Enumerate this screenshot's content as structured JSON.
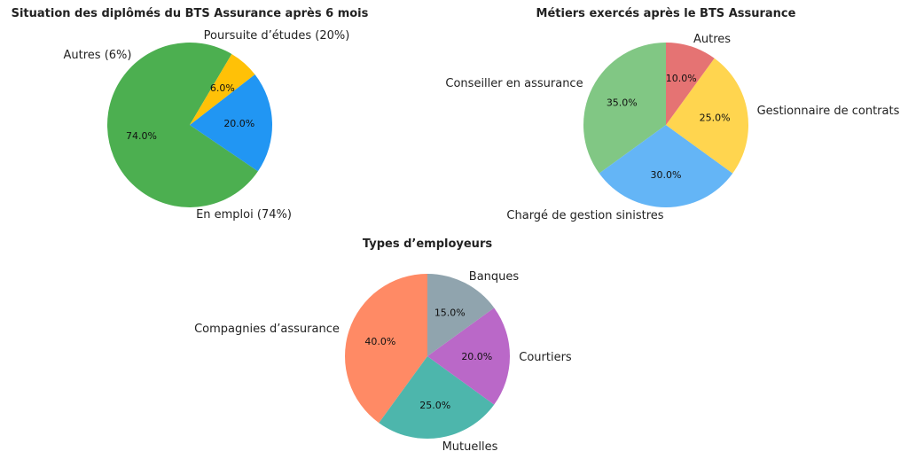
{
  "chart_data": [
    {
      "type": "pie",
      "title": "Situation des diplômés du BTS Assurance après 6 mois",
      "labels": [
        "En emploi (74%)",
        "Poursuite d’études (20%)",
        "Autres (6%)"
      ],
      "values": [
        74,
        20,
        6
      ],
      "percent_labels": [
        "74.0%",
        "20.0%",
        "6.0%"
      ],
      "colors": [
        "#4caf50",
        "#2196f3",
        "#ffc107"
      ]
    },
    {
      "type": "pie",
      "title": "Métiers exercés après le BTS Assurance",
      "labels": [
        "Conseiller en assurance",
        "Chargé de gestion sinistres",
        "Gestionnaire de contrats",
        "Autres"
      ],
      "values": [
        35,
        30,
        25,
        10
      ],
      "percent_labels": [
        "35.0%",
        "30.0%",
        "25.0%",
        "10.0%"
      ],
      "colors": [
        "#81c784",
        "#64b5f6",
        "#ffd54f",
        "#e57373"
      ]
    },
    {
      "type": "pie",
      "title": "Types d’employeurs",
      "labels": [
        "Compagnies d’assurance",
        "Mutuelles",
        "Courtiers",
        "Banques"
      ],
      "values": [
        40,
        25,
        20,
        15
      ],
      "percent_labels": [
        "40.0%",
        "25.0%",
        "20.0%",
        "15.0%"
      ],
      "colors": [
        "#ff8a65",
        "#4db6ac",
        "#ba68c8",
        "#90a4ae"
      ]
    }
  ]
}
